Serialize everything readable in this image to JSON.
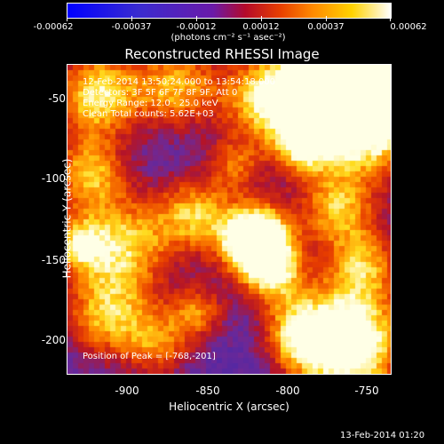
{
  "colorbar": {
    "ticks": [
      "-0.00062",
      "-0.00037",
      "-0.00012",
      "0.00012",
      "0.00037",
      "0.00062"
    ],
    "unit": "(photons cm⁻² s⁻¹ asec⁻²)"
  },
  "title": "Reconstructed RHESSI Image",
  "info": {
    "line1": "12-Feb-2014 13:50:24.000 to 13:54:18.000",
    "line2": "Detectors: 3F 5F 6F 7F 8F 9F, Att 0",
    "line3": "Energy Range: 12.0 - 25.0 keV",
    "line4": "Clean    Total counts: 5.62E+03",
    "peak": "Position of Peak = [-768,-201]"
  },
  "axes": {
    "xlabel": "Heliocentric X (arcsec)",
    "ylabel": "Heliocentric Y (arcsec)",
    "xticks": [
      "-900",
      "-850",
      "-800",
      "-750"
    ],
    "yticks": [
      "-50",
      "-100",
      "-150",
      "-200"
    ]
  },
  "footer": "13-Feb-2014 01:20"
}
